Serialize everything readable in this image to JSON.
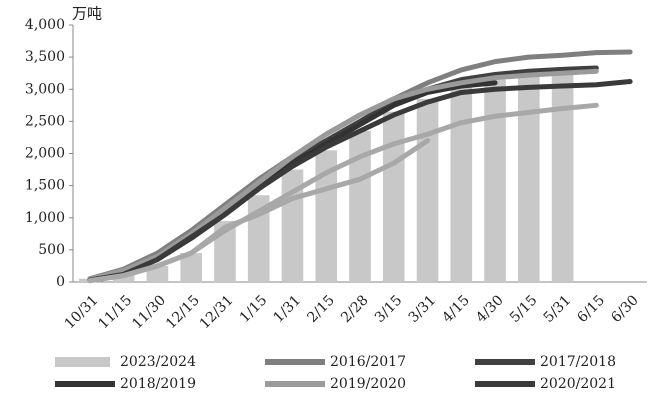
{
  "chart_data": {
    "type": "bar_line",
    "y_label": "万吨",
    "categories": [
      "10/31",
      "11/15",
      "11/30",
      "12/15",
      "12/31",
      "1/15",
      "1/31",
      "2/15",
      "2/28",
      "3/15",
      "3/31",
      "4/15",
      "4/30",
      "5/15",
      "5/31",
      "6/15",
      "6/30"
    ],
    "ylim": [
      0,
      4000
    ],
    "yticks": [
      0,
      500,
      {
        "value": 1000,
        "label": "1,000"
      },
      {
        "value": 1500,
        "label": "1,500"
      },
      {
        "value": 2000,
        "label": "2,000"
      },
      {
        "value": 2500,
        "label": "2,500"
      },
      {
        "value": 3000,
        "label": "3,000"
      },
      {
        "value": 3500,
        "label": "3,500"
      },
      {
        "value": 4000,
        "label": "4,000"
      }
    ],
    "series": [
      {
        "name": "2023/2024",
        "kind": "bar",
        "color": "#c8c8c8",
        "values": [
          50,
          150,
          250,
          450,
          950,
          1350,
          1750,
          2050,
          2350,
          2650,
          2850,
          3050,
          3150,
          3200,
          3250,
          null,
          null
        ]
      },
      {
        "name": "2016/2017",
        "kind": "line",
        "color": "#7f7f7f",
        "values": [
          50,
          200,
          450,
          800,
          1200,
          1600,
          1950,
          2300,
          2600,
          2850,
          3100,
          3300,
          3430,
          3500,
          3530,
          3570,
          3580
        ]
      },
      {
        "name": "2017/2018",
        "kind": "line",
        "color": "#404040",
        "values": [
          30,
          150,
          400,
          700,
          1100,
          1500,
          1900,
          2200,
          2500,
          2800,
          3000,
          3150,
          3230,
          3280,
          3310,
          3330,
          null
        ]
      },
      {
        "name": "2018/2019",
        "kind": "line",
        "color": "#333333",
        "values": [
          30,
          130,
          350,
          680,
          1050,
          1450,
          1850,
          2150,
          2450,
          2750,
          2950,
          3050,
          3100,
          null,
          null,
          null,
          null
        ]
      },
      {
        "name": "2019/2020",
        "kind": "line",
        "color": "#9a9a9a",
        "values": [
          40,
          180,
          400,
          750,
          1150,
          1550,
          1950,
          2300,
          2600,
          2850,
          3000,
          3100,
          3180,
          3220,
          3250,
          3280,
          null
        ]
      },
      {
        "name": "2020/2021",
        "kind": "line",
        "color": "#3a3a3a",
        "values": [
          30,
          120,
          350,
          700,
          1050,
          1450,
          1800,
          2100,
          2350,
          2600,
          2800,
          2950,
          3000,
          3030,
          3050,
          3070,
          3120
        ]
      },
      {
        "kind": "line",
        "color": "#a8a8a8",
        "values": [
          20,
          100,
          250,
          450,
          800,
          1100,
          1400,
          1700,
          1950,
          2150,
          2300,
          2480,
          2580,
          2640,
          2700,
          2750,
          null
        ]
      },
      {
        "kind": "line",
        "color": "#a8a8a8",
        "values": [
          20,
          100,
          250,
          450,
          850,
          1050,
          1300,
          1450,
          1600,
          1850,
          2200,
          null,
          null,
          null,
          null,
          null,
          null
        ]
      }
    ]
  }
}
